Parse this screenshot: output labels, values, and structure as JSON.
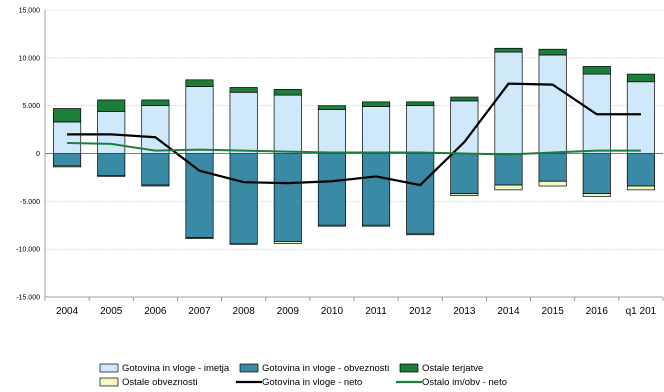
{
  "chart_data": {
    "type": "bar",
    "categories": [
      "2004",
      "2005",
      "2006",
      "2007",
      "2008",
      "2009",
      "2010",
      "2011",
      "2012",
      "2013",
      "2014",
      "2015",
      "2016",
      "q1 201"
    ],
    "ylim": [
      -15000,
      15000
    ],
    "yticks": [
      -15000,
      -10000,
      -5000,
      0,
      5000,
      10000,
      15000
    ],
    "ytick_labels": [
      "-15.000",
      "-10.000",
      "-5.000",
      "0",
      "5.000",
      "10.000",
      "15.000"
    ],
    "grid": true,
    "legend_position": "bottom",
    "colors": {
      "assets": "#cfe9fb",
      "liabilities": "#3a8aa6",
      "other_claims": "#1d7e3c",
      "other_liabilities": "#f2f7c4",
      "net_cash": "#000000",
      "other_net": "#1d7e3c"
    },
    "bar_series": [
      {
        "key": "assets",
        "name": "Gotovina in vloge - imetja",
        "stack": "pos",
        "values": [
          3300,
          4400,
          5000,
          7000,
          6400,
          6100,
          4600,
          4900,
          5000,
          5500,
          10600,
          10300,
          8300,
          7500
        ]
      },
      {
        "key": "other_claims",
        "name": "Ostale terjatve",
        "stack": "pos",
        "values": [
          1400,
          1200,
          600,
          700,
          500,
          600,
          400,
          500,
          400,
          400,
          400,
          600,
          800,
          800
        ]
      },
      {
        "key": "liabilities",
        "name": "Gotovina in vloge - obveznosti",
        "stack": "neg",
        "values": [
          -1300,
          -2300,
          -3300,
          -8800,
          -9400,
          -9200,
          -7500,
          -7500,
          -8400,
          -4200,
          -3300,
          -2900,
          -4200,
          -3400
        ]
      },
      {
        "key": "other_liabilities",
        "name": "Ostale obveznosti",
        "stack": "neg",
        "values": [
          -100,
          -100,
          -100,
          -100,
          -100,
          -200,
          -100,
          -100,
          -100,
          -200,
          -500,
          -500,
          -300,
          -400
        ]
      }
    ],
    "line_series": [
      {
        "key": "net_cash",
        "name": "Gotovina in vloge - neto",
        "values": [
          2000,
          2000,
          1700,
          -1800,
          -3000,
          -3100,
          -2900,
          -2400,
          -3300,
          1200,
          7300,
          7200,
          4100,
          4100
        ]
      },
      {
        "key": "other_net",
        "name": "Ostalo im/obv - neto",
        "values": [
          1100,
          1000,
          300,
          400,
          300,
          200,
          100,
          100,
          100,
          0,
          -100,
          100,
          300,
          300
        ]
      }
    ],
    "legend": [
      {
        "key": "assets",
        "label": "Gotovina in vloge - imetja",
        "kind": "box"
      },
      {
        "key": "liabilities",
        "label": "Gotovina in vloge - obveznosti",
        "kind": "box"
      },
      {
        "key": "other_claims",
        "label": "Ostale terjatve",
        "kind": "box"
      },
      {
        "key": "other_liabilities",
        "label": "Ostale obveznosti",
        "kind": "box"
      },
      {
        "key": "net_cash",
        "label": "Gotovina in vloge - neto",
        "kind": "line"
      },
      {
        "key": "other_net",
        "label": "Ostalo im/obv - neto",
        "kind": "line"
      }
    ]
  }
}
